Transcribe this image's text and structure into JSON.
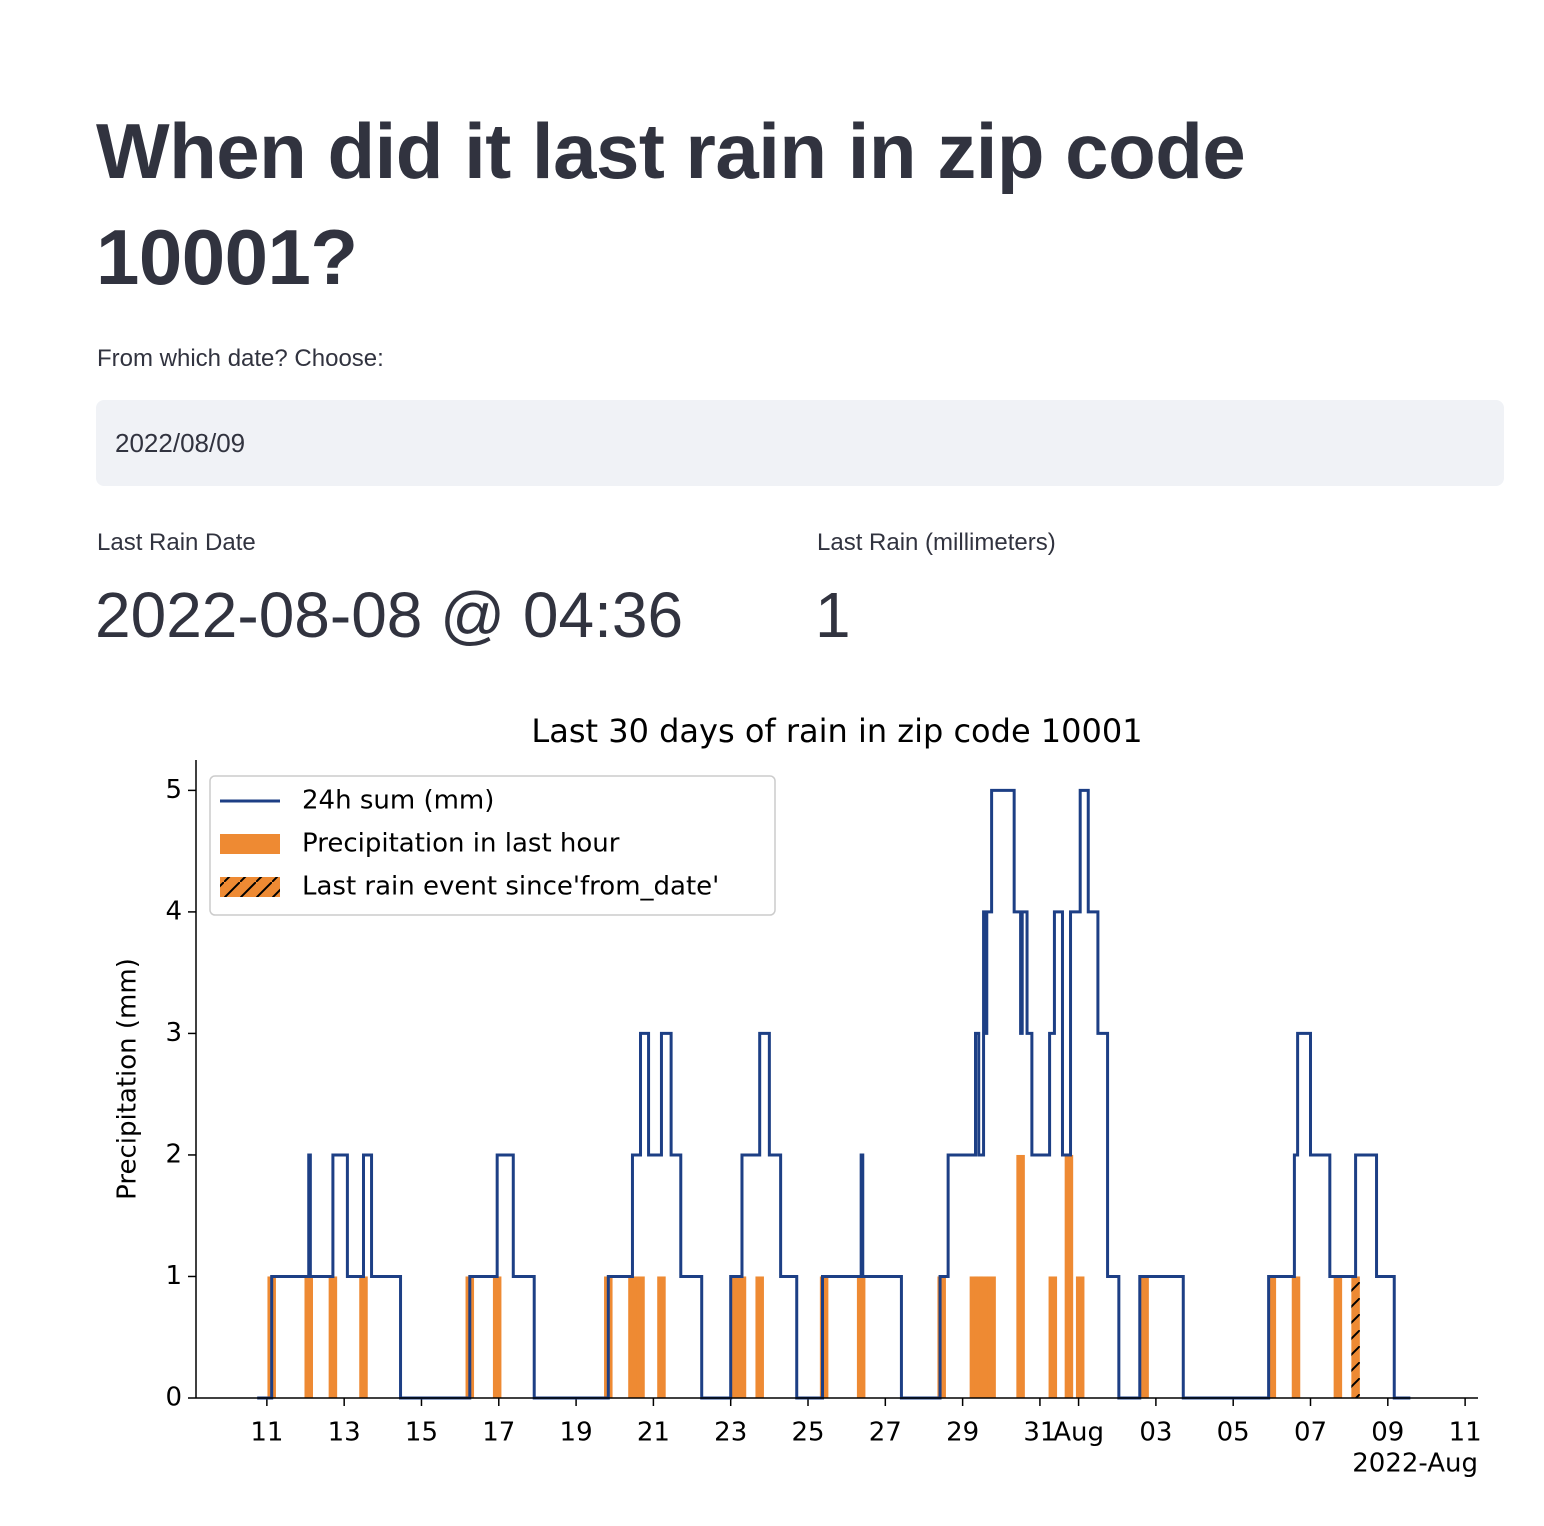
{
  "header": {
    "title": "When did it last rain in zip code 10001?"
  },
  "date_input": {
    "label": "From which date? Choose:",
    "value": "2022/08/09"
  },
  "metrics": [
    {
      "label": "Last Rain Date",
      "value": "2022-08-08 @ 04:36"
    },
    {
      "label": "Last Rain (millimeters)",
      "value": "1"
    }
  ],
  "chart_data": {
    "type": "line",
    "title": "Last 30 days of rain in zip code 10001",
    "y_label": "Precipitation (mm)",
    "x_offset_label": "2022-Aug",
    "xlim": [
      "2022-07-09T04:00",
      "2022-08-11T08:00"
    ],
    "xticks": [
      {
        "value": "2022-07-11T00:00",
        "label": "11"
      },
      {
        "value": "2022-07-13T00:00",
        "label": "13"
      },
      {
        "value": "2022-07-15T00:00",
        "label": "15"
      },
      {
        "value": "2022-07-17T00:00",
        "label": "17"
      },
      {
        "value": "2022-07-19T00:00",
        "label": "19"
      },
      {
        "value": "2022-07-21T00:00",
        "label": "21"
      },
      {
        "value": "2022-07-23T00:00",
        "label": "23"
      },
      {
        "value": "2022-07-25T00:00",
        "label": "25"
      },
      {
        "value": "2022-07-27T00:00",
        "label": "27"
      },
      {
        "value": "2022-07-29T00:00",
        "label": "29"
      },
      {
        "value": "2022-07-31T00:00",
        "label": "31"
      },
      {
        "value": "2022-08-01T00:00",
        "label": "Aug"
      },
      {
        "value": "2022-08-03T00:00",
        "label": "03"
      },
      {
        "value": "2022-08-05T00:00",
        "label": "05"
      },
      {
        "value": "2022-08-07T00:00",
        "label": "07"
      },
      {
        "value": "2022-08-09T00:00",
        "label": "09"
      },
      {
        "value": "2022-08-11T00:00",
        "label": "11"
      }
    ],
    "ylim": [
      0,
      5.25
    ],
    "yticks": [
      0,
      1,
      2,
      3,
      4,
      5
    ],
    "legend": "upper left",
    "series": [
      {
        "name": "24h sum (mm)",
        "type": "step",
        "color": "#1d3f85",
        "x": [
          "2022-07-10T18:00",
          "2022-07-11T03:00",
          "2022-07-12T02:00",
          "2022-07-12T03:00",
          "2022-07-12T17:00",
          "2022-07-13T02:00",
          "2022-07-13T12:00",
          "2022-07-13T17:00",
          "2022-07-14T11:00",
          "2022-07-16T06:00",
          "2022-07-16T23:00",
          "2022-07-17T09:00",
          "2022-07-17T22:00",
          "2022-07-19T20:00",
          "2022-07-20T11:00",
          "2022-07-20T16:00",
          "2022-07-20T21:00",
          "2022-07-21T05:00",
          "2022-07-21T11:00",
          "2022-07-21T17:00",
          "2022-07-22T06:00",
          "2022-07-23T00:00",
          "2022-07-23T07:00",
          "2022-07-23T18:00",
          "2022-07-24T00:00",
          "2022-07-24T07:00",
          "2022-07-24T17:00",
          "2022-07-25T09:00",
          "2022-07-26T09:00",
          "2022-07-26T10:00",
          "2022-07-27T10:00",
          "2022-07-28T10:00",
          "2022-07-28T15:00",
          "2022-07-29T08:00",
          "2022-07-29T10:00",
          "2022-07-29T13:00",
          "2022-07-29T14:00",
          "2022-07-29T15:00",
          "2022-07-29T18:00",
          "2022-07-30T08:00",
          "2022-07-30T12:00",
          "2022-07-30T13:00",
          "2022-07-30T16:00",
          "2022-07-30T19:00",
          "2022-07-31T06:00",
          "2022-07-31T09:00",
          "2022-07-31T14:00",
          "2022-07-31T19:00",
          "2022-08-01T01:00",
          "2022-08-01T06:00",
          "2022-08-01T12:00",
          "2022-08-01T18:00",
          "2022-08-02T01:00",
          "2022-08-02T14:00",
          "2022-08-03T17:00",
          "2022-08-05T22:00",
          "2022-08-06T14:00",
          "2022-08-06T16:00",
          "2022-08-07T00:00",
          "2022-08-07T12:00",
          "2022-08-08T04:00",
          "2022-08-08T17:00",
          "2022-08-09T04:00",
          "2022-08-09T14:00"
        ],
        "values": [
          0,
          1,
          2,
          1,
          2,
          1,
          2,
          1,
          0,
          1,
          2,
          1,
          0,
          1,
          2,
          3,
          2,
          3,
          2,
          1,
          0,
          1,
          2,
          3,
          2,
          1,
          0,
          1,
          2,
          1,
          0,
          1,
          2,
          3,
          2,
          4,
          3,
          4,
          5,
          4,
          3,
          4,
          3,
          2,
          3,
          4,
          2,
          4,
          5,
          4,
          3,
          1,
          0,
          1,
          0,
          1,
          2,
          3,
          2,
          1,
          2,
          1,
          0,
          0
        ]
      },
      {
        "name": "Precipitation in last hour",
        "type": "bar",
        "color": "#ee8a33",
        "x": [
          "2022-07-11T03:00",
          "2022-07-12T02:00",
          "2022-07-12T17:00",
          "2022-07-13T12:00",
          "2022-07-16T06:00",
          "2022-07-16T23:00",
          "2022-07-19T20:00",
          "2022-07-20T11:00",
          "2022-07-20T16:00",
          "2022-07-21T05:00",
          "2022-07-23T02:00",
          "2022-07-23T07:00",
          "2022-07-23T18:00",
          "2022-07-25T10:00",
          "2022-07-26T09:00",
          "2022-07-28T11:00",
          "2022-07-29T07:00",
          "2022-07-29T10:00",
          "2022-07-29T13:00",
          "2022-07-29T18:00",
          "2022-07-30T12:00",
          "2022-07-31T08:00",
          "2022-07-31T18:00",
          "2022-08-01T01:00",
          "2022-08-02T17:00",
          "2022-08-06T00:00",
          "2022-08-06T15:00",
          "2022-08-07T17:00"
        ],
        "values": [
          1,
          1,
          1,
          1,
          1,
          1,
          1,
          1,
          1,
          1,
          1,
          1,
          1,
          1,
          1,
          1,
          1,
          1,
          1,
          1,
          2,
          1,
          2,
          1,
          1,
          1,
          1,
          1
        ]
      },
      {
        "name": "Last rain event since'from_date'",
        "type": "hatched-bar",
        "color": "#ee8a33",
        "x": [
          "2022-08-08T04:00"
        ],
        "values": [
          1
        ]
      }
    ]
  }
}
